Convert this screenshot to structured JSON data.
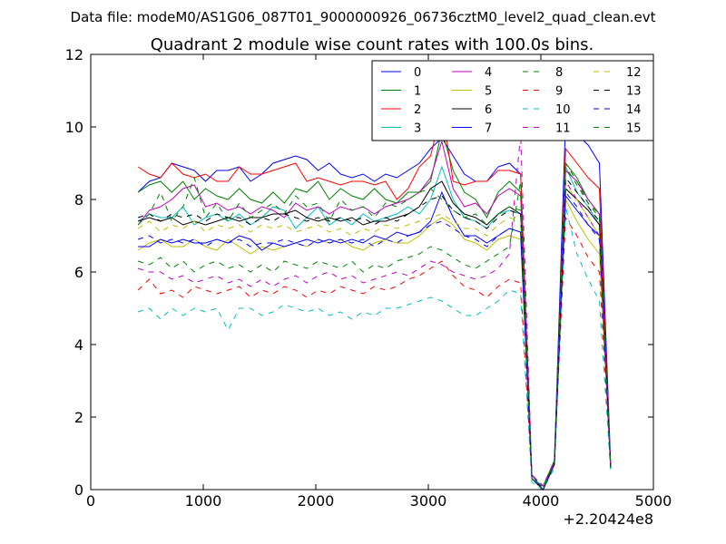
{
  "suptitle": "Data file: modeM0/AS1G06_087T01_9000000926_06736cztM0_level2_quad_clean.evt",
  "chart_data": {
    "type": "line",
    "title": "Quadrant 2 module wise count rates with 100.0s bins.",
    "xlabel": "",
    "ylabel": "",
    "x_offset_label": "+2.20424e8",
    "xlim": [
      0,
      5000
    ],
    "ylim": [
      0,
      12
    ],
    "xticks": [
      "0",
      "1000",
      "2000",
      "3000",
      "4000",
      "5000"
    ],
    "yticks": [
      "0",
      "2",
      "4",
      "6",
      "8",
      "10",
      "12"
    ],
    "legend_position": "top-right",
    "legend_columns": 4,
    "x": [
      420,
      520,
      620,
      720,
      820,
      920,
      1020,
      1120,
      1220,
      1320,
      1420,
      1520,
      1620,
      1720,
      1820,
      1920,
      2020,
      2120,
      2220,
      2320,
      2420,
      2520,
      2620,
      2720,
      2820,
      2920,
      3020,
      3120,
      3220,
      3320,
      3420,
      3520,
      3620,
      3720,
      3820,
      3920,
      4020,
      4120,
      4220,
      4320,
      4420,
      4520,
      4620
    ],
    "series": [
      {
        "name": "0",
        "color": "#0000ff",
        "dash": "solid",
        "values": [
          8.2,
          8.5,
          8.6,
          9.0,
          8.9,
          8.8,
          8.5,
          8.8,
          8.8,
          8.9,
          8.5,
          8.7,
          9.0,
          9.1,
          9.2,
          9.1,
          8.8,
          9.0,
          8.7,
          8.6,
          8.7,
          8.5,
          8.7,
          8.6,
          8.8,
          9.0,
          9.4,
          9.7,
          9.2,
          8.7,
          8.5,
          8.5,
          8.9,
          9.0,
          8.7,
          0.4,
          0.0,
          0.8,
          10.2,
          9.8,
          9.5,
          9.0,
          0.7
        ]
      },
      {
        "name": "1",
        "color": "#008000",
        "dash": "solid",
        "values": [
          8.2,
          8.4,
          8.5,
          8.2,
          8.5,
          8.0,
          8.3,
          8.1,
          8.0,
          8.3,
          8.0,
          7.9,
          8.2,
          7.9,
          8.3,
          8.2,
          8.5,
          8.0,
          8.3,
          8.1,
          8.0,
          8.3,
          8.0,
          7.9,
          8.2,
          8.2,
          8.5,
          9.9,
          8.8,
          8.2,
          8.0,
          7.5,
          8.2,
          8.5,
          8.2,
          0.3,
          0.1,
          0.8,
          9.0,
          8.6,
          8.0,
          7.6,
          0.6
        ]
      },
      {
        "name": "2",
        "color": "#ff0000",
        "dash": "solid",
        "values": [
          8.9,
          8.7,
          8.6,
          9.0,
          8.7,
          8.6,
          8.7,
          8.5,
          8.5,
          8.9,
          8.7,
          8.7,
          8.8,
          8.9,
          9.0,
          8.5,
          8.6,
          8.5,
          8.4,
          8.5,
          8.5,
          8.4,
          8.5,
          8.0,
          8.3,
          8.9,
          9.2,
          10.5,
          8.5,
          8.4,
          8.5,
          8.5,
          8.8,
          8.8,
          8.7,
          0.3,
          0.0,
          0.7,
          9.4,
          9.0,
          8.6,
          8.3,
          0.6
        ]
      },
      {
        "name": "3",
        "color": "#00bfbf",
        "dash": "solid",
        "values": [
          7.4,
          7.6,
          7.5,
          7.5,
          7.8,
          7.3,
          7.5,
          7.6,
          7.4,
          7.6,
          7.3,
          7.5,
          7.8,
          7.7,
          7.2,
          7.5,
          7.8,
          7.3,
          7.5,
          7.3,
          7.6,
          7.4,
          7.5,
          7.6,
          7.8,
          7.6,
          8.0,
          8.9,
          8.0,
          7.5,
          7.4,
          7.2,
          7.6,
          7.7,
          7.6,
          0.3,
          0.0,
          0.7,
          8.9,
          8.2,
          7.8,
          7.3,
          0.6
        ]
      },
      {
        "name": "4",
        "color": "#bf00bf",
        "dash": "solid",
        "values": [
          7.3,
          7.7,
          7.8,
          8.0,
          8.3,
          8.4,
          7.8,
          7.9,
          7.7,
          7.8,
          7.6,
          7.8,
          7.7,
          7.5,
          7.9,
          7.7,
          7.8,
          7.6,
          7.8,
          7.7,
          7.8,
          7.6,
          7.8,
          7.9,
          8.0,
          8.2,
          8.6,
          9.6,
          8.3,
          7.8,
          7.9,
          7.6,
          8.1,
          8.3,
          8.1,
          0.3,
          0.0,
          0.7,
          8.8,
          8.5,
          8.0,
          7.6,
          0.6
        ]
      },
      {
        "name": "5",
        "color": "#bfbf00",
        "dash": "solid",
        "values": [
          6.6,
          6.8,
          6.9,
          6.7,
          6.7,
          6.9,
          6.7,
          6.6,
          6.9,
          6.7,
          6.5,
          6.7,
          6.6,
          6.7,
          6.8,
          6.7,
          6.9,
          6.8,
          6.9,
          6.7,
          6.6,
          6.8,
          6.9,
          6.8,
          6.8,
          7.0,
          7.3,
          7.5,
          7.3,
          6.9,
          6.8,
          6.6,
          6.9,
          7.0,
          6.9,
          0.3,
          0.0,
          0.7,
          8.0,
          7.4,
          6.9,
          6.5,
          0.6
        ]
      },
      {
        "name": "6",
        "color": "#000000",
        "dash": "solid",
        "values": [
          7.4,
          7.5,
          7.4,
          7.5,
          7.3,
          7.4,
          7.3,
          7.4,
          7.5,
          7.4,
          7.5,
          7.5,
          7.6,
          7.6,
          7.7,
          7.5,
          7.4,
          7.5,
          7.4,
          7.5,
          7.3,
          7.4,
          7.4,
          7.5,
          7.6,
          7.8,
          8.3,
          8.5,
          7.9,
          7.6,
          7.5,
          7.3,
          7.6,
          7.8,
          7.6,
          0.3,
          0.0,
          0.7,
          8.3,
          8.0,
          7.7,
          7.3,
          0.6
        ]
      },
      {
        "name": "7",
        "color": "#0000ff",
        "dash": "solid",
        "values": [
          6.7,
          6.7,
          6.9,
          6.8,
          6.9,
          6.8,
          6.8,
          6.9,
          6.8,
          7.0,
          6.9,
          6.6,
          6.8,
          6.7,
          6.8,
          6.9,
          6.8,
          6.9,
          6.8,
          6.9,
          6.8,
          7.0,
          6.9,
          7.1,
          7.0,
          7.1,
          7.4,
          8.2,
          7.5,
          7.0,
          7.0,
          6.8,
          7.0,
          7.2,
          7.1,
          0.3,
          0.0,
          0.7,
          8.1,
          7.7,
          7.3,
          7.0,
          0.6
        ]
      },
      {
        "name": "8",
        "color": "#008000",
        "dash": "dashed",
        "values": [
          6.3,
          6.2,
          6.4,
          6.1,
          6.3,
          6.0,
          6.2,
          6.3,
          6.1,
          6.2,
          6.0,
          6.2,
          6.0,
          6.3,
          6.2,
          6.1,
          6.3,
          6.2,
          6.1,
          6.3,
          6.0,
          6.2,
          6.1,
          6.3,
          6.4,
          6.5,
          6.7,
          6.6,
          6.4,
          6.2,
          6.1,
          6.3,
          6.5,
          6.7,
          8.5,
          0.4,
          0.1,
          0.8,
          9.0,
          8.5,
          7.9,
          7.5,
          0.6
        ]
      },
      {
        "name": "9",
        "color": "#ff0000",
        "dash": "dashed",
        "values": [
          5.5,
          5.8,
          5.4,
          5.5,
          5.3,
          5.6,
          5.5,
          5.4,
          5.5,
          5.6,
          5.3,
          5.5,
          5.4,
          5.6,
          5.5,
          5.3,
          5.5,
          5.4,
          5.6,
          5.5,
          5.4,
          5.6,
          5.5,
          5.6,
          5.8,
          5.9,
          6.1,
          6.3,
          5.9,
          5.6,
          5.5,
          5.3,
          5.6,
          5.8,
          5.7,
          0.3,
          0.0,
          0.7,
          7.5,
          7.0,
          6.4,
          6.0,
          0.6
        ]
      },
      {
        "name": "10",
        "color": "#00bfbf",
        "dash": "dashed",
        "values": [
          4.9,
          5.0,
          4.7,
          5.0,
          4.8,
          5.0,
          4.9,
          5.0,
          4.4,
          5.0,
          5.0,
          4.8,
          4.9,
          5.1,
          5.0,
          4.9,
          5.0,
          4.8,
          4.9,
          4.7,
          4.9,
          4.8,
          5.0,
          5.0,
          5.1,
          5.2,
          5.3,
          5.2,
          5.0,
          4.8,
          4.8,
          5.0,
          5.2,
          5.5,
          5.4,
          0.2,
          0.0,
          0.6,
          7.8,
          6.5,
          5.8,
          5.2,
          0.5
        ]
      },
      {
        "name": "11",
        "color": "#bf00bf",
        "dash": "dashed",
        "values": [
          6.1,
          6.0,
          6.0,
          5.8,
          5.9,
          5.7,
          5.8,
          5.9,
          5.7,
          5.8,
          5.6,
          5.8,
          5.6,
          5.8,
          5.9,
          5.7,
          5.9,
          6.0,
          5.8,
          5.9,
          5.7,
          5.8,
          5.9,
          6.0,
          5.9,
          6.1,
          6.3,
          6.2,
          6.0,
          5.9,
          5.8,
          5.9,
          6.1,
          6.5,
          9.8,
          0.4,
          0.1,
          0.8,
          8.5,
          8.0,
          7.5,
          7.0,
          0.6
        ]
      },
      {
        "name": "12",
        "color": "#bfbf00",
        "dash": "dashed",
        "values": [
          7.2,
          7.4,
          7.1,
          7.3,
          7.2,
          7.4,
          7.1,
          7.3,
          7.2,
          7.3,
          7.1,
          7.3,
          7.2,
          7.3,
          7.1,
          7.2,
          7.3,
          7.1,
          7.2,
          7.0,
          7.2,
          7.1,
          7.3,
          7.2,
          7.3,
          7.4,
          7.5,
          7.6,
          7.4,
          7.2,
          7.2,
          7.0,
          7.3,
          7.5,
          7.4,
          0.3,
          0.0,
          0.7,
          8.4,
          8.0,
          7.5,
          7.0,
          0.6
        ]
      },
      {
        "name": "13",
        "color": "#000000",
        "dash": "dashed",
        "values": [
          7.5,
          7.6,
          7.4,
          7.6,
          7.5,
          7.6,
          7.4,
          7.6,
          7.5,
          7.5,
          7.3,
          7.5,
          7.4,
          7.6,
          7.5,
          7.4,
          7.5,
          7.4,
          7.5,
          7.4,
          7.5,
          7.3,
          7.5,
          7.4,
          7.6,
          7.8,
          8.0,
          8.1,
          7.7,
          7.5,
          7.4,
          7.2,
          7.5,
          7.7,
          7.6,
          0.3,
          0.0,
          0.7,
          8.6,
          8.2,
          7.8,
          7.4,
          0.6
        ]
      },
      {
        "name": "14",
        "color": "#0000ff",
        "dash": "dashed",
        "values": [
          6.9,
          7.0,
          6.8,
          6.9,
          6.8,
          6.9,
          6.7,
          6.9,
          6.8,
          6.9,
          6.7,
          6.8,
          6.8,
          6.9,
          6.8,
          6.7,
          6.9,
          6.8,
          6.9,
          6.8,
          6.9,
          6.7,
          6.9,
          6.8,
          7.0,
          7.1,
          7.3,
          7.4,
          7.2,
          7.0,
          6.9,
          6.7,
          7.0,
          7.2,
          7.1,
          0.3,
          0.0,
          0.7,
          8.2,
          7.8,
          7.3,
          6.9,
          0.6
        ]
      },
      {
        "name": "15",
        "color": "#008000",
        "dash": "dashed",
        "values": [
          7.3,
          7.6,
          8.2,
          7.4,
          7.8,
          8.6,
          7.5,
          7.9,
          7.4,
          7.9,
          7.5,
          7.7,
          7.9,
          7.6,
          8.1,
          7.8,
          7.9,
          7.4,
          8.0,
          7.7,
          7.8,
          7.5,
          7.9,
          7.8,
          8.0,
          8.2,
          8.3,
          8.0,
          7.7,
          7.5,
          7.6,
          7.3,
          7.6,
          7.8,
          7.7,
          0.3,
          0.0,
          0.8,
          8.9,
          8.4,
          7.9,
          7.6,
          0.6
        ]
      }
    ]
  }
}
